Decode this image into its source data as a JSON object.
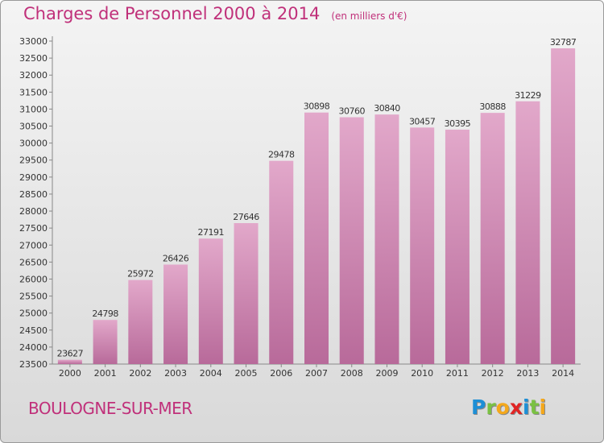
{
  "title": "Charges de Personnel 2000 à 2014",
  "subtitle": "(en milliers d'€)",
  "city": "BOULOGNE-SUR-MER",
  "brand": {
    "letters": [
      "P",
      "r",
      "o",
      "x",
      "i",
      "t",
      "i"
    ],
    "colors": [
      "#1d8fd6",
      "#7ac143",
      "#f4a81c",
      "#e02424",
      "#1d8fd6",
      "#7ac143",
      "#f4a81c"
    ]
  },
  "colors": {
    "bar_top": "#e2a8ca",
    "bar_bottom": "#b86a9a",
    "title": "#c0307a",
    "text": "#333333"
  },
  "chart_data": {
    "type": "bar",
    "title": "Charges de Personnel 2000 à 2014",
    "xlabel": "",
    "ylabel": "",
    "categories": [
      "2000",
      "2001",
      "2002",
      "2003",
      "2004",
      "2005",
      "2006",
      "2007",
      "2008",
      "2009",
      "2010",
      "2011",
      "2012",
      "2013",
      "2014"
    ],
    "values": [
      23627,
      24798,
      25972,
      26426,
      27191,
      27646,
      29478,
      30898,
      30760,
      30840,
      30457,
      30395,
      30888,
      31229,
      32787
    ],
    "ylim": [
      23500,
      33000
    ],
    "yticks": [
      23500,
      24000,
      24500,
      25000,
      25500,
      26000,
      26500,
      27000,
      27500,
      28000,
      28500,
      29000,
      29500,
      30000,
      30500,
      31000,
      31500,
      32000,
      32500,
      33000
    ],
    "grid": false,
    "legend": "none"
  }
}
